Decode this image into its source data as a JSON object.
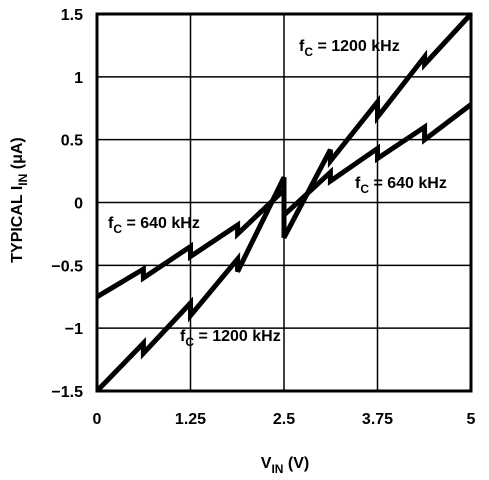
{
  "chart_data": {
    "type": "line",
    "xlabel": {
      "main": "V",
      "sub": "IN",
      "unit": " (V)"
    },
    "ylabel": {
      "prefix": "TYPICAL I",
      "sub": "IN",
      "unit": " (μA)"
    },
    "xlim": [
      0,
      5
    ],
    "ylim": [
      -1.5,
      1.5
    ],
    "grid": true,
    "x_ticks": [
      "0",
      "1.25",
      "2.5",
      "3.75",
      "5"
    ],
    "x_tick_values": [
      0,
      1.25,
      2.5,
      3.75,
      5
    ],
    "y_ticks": [
      "1.5",
      "1",
      "0.5",
      "0",
      "-0.5",
      "-1",
      "-1.5"
    ],
    "y_tick_values": [
      1.5,
      1,
      0.5,
      0,
      -0.5,
      -1,
      -1.5
    ],
    "series": [
      {
        "name": "f_C = 1200 kHz",
        "label_main": "f",
        "label_sub": "C",
        "label_rest": " = 1200 kHz",
        "x": [
          0,
          0.62,
          0.62,
          1.25,
          1.25,
          1.88,
          1.88,
          2.5,
          2.5,
          3.12,
          3.12,
          3.75,
          3.75,
          4.38,
          4.38,
          5
        ],
        "y": [
          -1.5,
          -1.12,
          -1.2,
          -0.8,
          -0.9,
          -0.45,
          -0.55,
          0.2,
          -0.28,
          0.42,
          0.33,
          0.8,
          0.68,
          1.16,
          1.1,
          1.5
        ]
      },
      {
        "name": "f_C = 640 kHz",
        "label_main": "f",
        "label_sub": "C",
        "label_rest": " = 640 kHz",
        "x": [
          0,
          0.62,
          0.62,
          1.25,
          1.25,
          1.88,
          1.88,
          2.5,
          2.5,
          3.12,
          3.12,
          3.75,
          3.75,
          4.38,
          4.38,
          5
        ],
        "y": [
          -0.75,
          -0.53,
          -0.6,
          -0.35,
          -0.43,
          -0.18,
          -0.25,
          0.1,
          -0.1,
          0.24,
          0.17,
          0.43,
          0.35,
          0.6,
          0.5,
          0.78
        ]
      }
    ]
  }
}
